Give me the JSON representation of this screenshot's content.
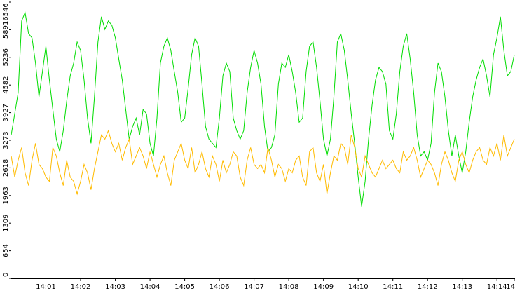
{
  "chart_data": {
    "type": "line",
    "title": "",
    "xlabel": "",
    "ylabel": "",
    "ylim": [
      0,
      6546
    ],
    "xlim": [
      "14:00:00",
      "14:14:30"
    ],
    "grid": false,
    "legend": "none",
    "y_ticks": [
      "0",
      "654",
      "1309",
      "1963",
      "2618",
      "3273",
      "3927",
      "4582",
      "5236",
      "5891",
      "6546"
    ],
    "x_ticks": [
      "14:01",
      "14:02",
      "14:03",
      "14:04",
      "14:05",
      "14:06",
      "14:07",
      "14:08",
      "14:09",
      "14:10",
      "14:11",
      "14:12",
      "14:13",
      "14:14",
      "14"
    ],
    "x_tick_times": [
      "14:01:00",
      "14:02:00",
      "14:03:00",
      "14:04:00",
      "14:05:00",
      "14:06:00",
      "14:07:00",
      "14:08:00",
      "14:09:00",
      "14:10:00",
      "14:11:00",
      "14:12:00",
      "14:13:00",
      "14:14:00",
      "14:14:30"
    ],
    "series": [
      {
        "color": "#00dd00",
        "x": [
          "14:00:00",
          "14:00:06",
          "14:00:12",
          "14:00:18",
          "14:00:24",
          "14:00:30",
          "14:00:36",
          "14:00:42",
          "14:00:48",
          "14:00:54",
          "14:01:00",
          "14:01:06",
          "14:01:12",
          "14:01:18",
          "14:01:24",
          "14:01:30",
          "14:01:36",
          "14:01:42",
          "14:01:48",
          "14:01:54",
          "14:02:00",
          "14:02:06",
          "14:02:12",
          "14:02:18",
          "14:02:24",
          "14:02:30",
          "14:02:36",
          "14:02:42",
          "14:02:48",
          "14:02:54",
          "14:03:00",
          "14:03:06",
          "14:03:12",
          "14:03:18",
          "14:03:24",
          "14:03:30",
          "14:03:36",
          "14:03:42",
          "14:03:48",
          "14:03:54",
          "14:04:00",
          "14:04:06",
          "14:04:12",
          "14:04:18",
          "14:04:24",
          "14:04:30",
          "14:04:36",
          "14:04:42",
          "14:04:48",
          "14:04:54",
          "14:05:00",
          "14:05:06",
          "14:05:12",
          "14:05:18",
          "14:05:24",
          "14:05:30",
          "14:05:36",
          "14:05:42",
          "14:05:48",
          "14:05:54",
          "14:06:00",
          "14:06:06",
          "14:06:12",
          "14:06:18",
          "14:06:24",
          "14:06:30",
          "14:06:36",
          "14:06:42",
          "14:06:48",
          "14:06:54",
          "14:07:00",
          "14:07:06",
          "14:07:12",
          "14:07:18",
          "14:07:24",
          "14:07:30",
          "14:07:36",
          "14:07:42",
          "14:07:48",
          "14:07:54",
          "14:08:00",
          "14:08:06",
          "14:08:12",
          "14:08:18",
          "14:08:24",
          "14:08:30",
          "14:08:36",
          "14:08:42",
          "14:08:48",
          "14:08:54",
          "14:09:00",
          "14:09:06",
          "14:09:12",
          "14:09:18",
          "14:09:24",
          "14:09:30",
          "14:09:36",
          "14:09:42",
          "14:09:48",
          "14:09:54",
          "14:10:00",
          "14:10:06",
          "14:10:12",
          "14:10:18",
          "14:10:24",
          "14:10:30",
          "14:10:36",
          "14:10:42",
          "14:10:48",
          "14:10:54",
          "14:11:00",
          "14:11:06",
          "14:11:12",
          "14:11:18",
          "14:11:24",
          "14:11:30",
          "14:11:36",
          "14:11:42",
          "14:11:48",
          "14:11:54",
          "14:12:00",
          "14:12:06",
          "14:12:12",
          "14:12:18",
          "14:12:24",
          "14:12:30",
          "14:12:36",
          "14:12:42",
          "14:12:48",
          "14:12:54",
          "14:13:00",
          "14:13:06",
          "14:13:12",
          "14:13:18",
          "14:13:24",
          "14:13:30",
          "14:13:36",
          "14:13:42",
          "14:13:48",
          "14:13:54",
          "14:14:00",
          "14:14:06",
          "14:14:12",
          "14:14:18",
          "14:14:24",
          "14:14:30"
        ],
        "values": [
          3400,
          3900,
          4400,
          6100,
          6300,
          5800,
          5700,
          5100,
          4300,
          4900,
          5500,
          4700,
          4000,
          3300,
          3000,
          3500,
          4200,
          4800,
          5100,
          5600,
          5400,
          4700,
          3800,
          3200,
          4300,
          5600,
          6200,
          5900,
          6100,
          6000,
          5700,
          5200,
          4700,
          4000,
          3300,
          3600,
          3800,
          3400,
          4000,
          3900,
          3200,
          2900,
          3800,
          5100,
          5500,
          5700,
          5400,
          4900,
          4400,
          3700,
          3800,
          4500,
          5300,
          5700,
          5500,
          4600,
          3600,
          3300,
          3200,
          3100,
          3800,
          4800,
          5100,
          4900,
          3800,
          3500,
          3300,
          3500,
          4400,
          5000,
          5400,
          5100,
          4600,
          3600,
          3000,
          3100,
          3400,
          4600,
          5100,
          5000,
          5300,
          4900,
          4400,
          3700,
          3800,
          4900,
          5500,
          5600,
          5000,
          4200,
          3300,
          2900,
          3300,
          4300,
          5600,
          5800,
          5400,
          4700,
          3900,
          3200,
          2400,
          1700,
          2300,
          3300,
          4100,
          4700,
          5000,
          4900,
          4600,
          3500,
          3300,
          3900,
          4900,
          5500,
          5800,
          5200,
          4400,
          3400,
          2900,
          3000,
          2800,
          3200,
          4400,
          5100,
          4900,
          4300,
          3500,
          2900,
          3400,
          2900,
          2500,
          3000,
          3700,
          4300,
          4700,
          5000,
          5200,
          4800,
          4300,
          5300,
          5700,
          6200,
          5400,
          4800,
          4900,
          5300
        ]
      },
      {
        "color": "#ffbb00",
        "x": [
          "14:00:00",
          "14:00:06",
          "14:00:12",
          "14:00:18",
          "14:00:24",
          "14:00:30",
          "14:00:36",
          "14:00:42",
          "14:00:48",
          "14:00:54",
          "14:01:00",
          "14:01:06",
          "14:01:12",
          "14:01:18",
          "14:01:24",
          "14:01:30",
          "14:01:36",
          "14:01:42",
          "14:01:48",
          "14:01:54",
          "14:02:00",
          "14:02:06",
          "14:02:12",
          "14:02:18",
          "14:02:24",
          "14:02:30",
          "14:02:36",
          "14:02:42",
          "14:02:48",
          "14:02:54",
          "14:03:00",
          "14:03:06",
          "14:03:12",
          "14:03:18",
          "14:03:24",
          "14:03:30",
          "14:03:36",
          "14:03:42",
          "14:03:48",
          "14:03:54",
          "14:04:00",
          "14:04:06",
          "14:04:12",
          "14:04:18",
          "14:04:24",
          "14:04:30",
          "14:04:36",
          "14:04:42",
          "14:04:48",
          "14:04:54",
          "14:05:00",
          "14:05:06",
          "14:05:12",
          "14:05:18",
          "14:05:24",
          "14:05:30",
          "14:05:36",
          "14:05:42",
          "14:05:48",
          "14:05:54",
          "14:06:00",
          "14:06:06",
          "14:06:12",
          "14:06:18",
          "14:06:24",
          "14:06:30",
          "14:06:36",
          "14:06:42",
          "14:06:48",
          "14:06:54",
          "14:07:00",
          "14:07:06",
          "14:07:12",
          "14:07:18",
          "14:07:24",
          "14:07:30",
          "14:07:36",
          "14:07:42",
          "14:07:48",
          "14:07:54",
          "14:08:00",
          "14:08:06",
          "14:08:12",
          "14:08:18",
          "14:08:24",
          "14:08:30",
          "14:08:36",
          "14:08:42",
          "14:08:48",
          "14:08:54",
          "14:09:00",
          "14:09:06",
          "14:09:12",
          "14:09:18",
          "14:09:24",
          "14:09:30",
          "14:09:36",
          "14:09:42",
          "14:09:48",
          "14:09:54",
          "14:10:00",
          "14:10:06",
          "14:10:12",
          "14:10:18",
          "14:10:24",
          "14:10:30",
          "14:10:36",
          "14:10:42",
          "14:10:48",
          "14:10:54",
          "14:11:00",
          "14:11:06",
          "14:11:12",
          "14:11:18",
          "14:11:24",
          "14:11:30",
          "14:11:36",
          "14:11:42",
          "14:11:48",
          "14:11:54",
          "14:12:00",
          "14:12:06",
          "14:12:12",
          "14:12:18",
          "14:12:24",
          "14:12:30",
          "14:12:36",
          "14:12:42",
          "14:12:48",
          "14:12:54",
          "14:13:00",
          "14:13:06",
          "14:13:12",
          "14:13:18",
          "14:13:24",
          "14:13:30",
          "14:13:36",
          "14:13:42",
          "14:13:48",
          "14:13:54",
          "14:14:00",
          "14:14:06",
          "14:14:12",
          "14:14:18",
          "14:14:24",
          "14:14:30"
        ],
        "values": [
          2900,
          2400,
          2800,
          3100,
          2500,
          2200,
          2800,
          3200,
          2700,
          2600,
          2400,
          2300,
          3100,
          2900,
          2500,
          2200,
          2800,
          2400,
          2300,
          2000,
          2300,
          2700,
          2500,
          2100,
          2600,
          3000,
          3400,
          3300,
          3500,
          3200,
          3000,
          3200,
          2800,
          3100,
          3300,
          2700,
          2900,
          3100,
          2900,
          2600,
          3000,
          2700,
          2400,
          2700,
          2900,
          2500,
          2200,
          2800,
          3000,
          3200,
          2800,
          2600,
          3100,
          2500,
          2700,
          3000,
          2600,
          2400,
          2900,
          2700,
          2300,
          2800,
          2500,
          2700,
          3000,
          2900,
          2400,
          2200,
          2800,
          3100,
          2700,
          2600,
          2700,
          2500,
          3100,
          2800,
          2400,
          2700,
          2600,
          2300,
          2600,
          2500,
          2800,
          2900,
          2400,
          2200,
          3000,
          3100,
          2500,
          2300,
          2700,
          2000,
          2500,
          2900,
          2800,
          3200,
          3100,
          2700,
          3400,
          3100,
          2600,
          2400,
          2900,
          2700,
          2500,
          2400,
          2600,
          2800,
          2600,
          2700,
          2800,
          2600,
          2500,
          3000,
          2800,
          2900,
          3100,
          2800,
          2400,
          2600,
          2800,
          2700,
          2500,
          2200,
          2700,
          3000,
          2800,
          2500,
          2300,
          2800,
          3000,
          2700,
          2500,
          2800,
          3000,
          3100,
          2800,
          2700,
          3100,
          2900,
          3200,
          2800,
          3400,
          2900,
          3100,
          3300
        ]
      }
    ]
  }
}
